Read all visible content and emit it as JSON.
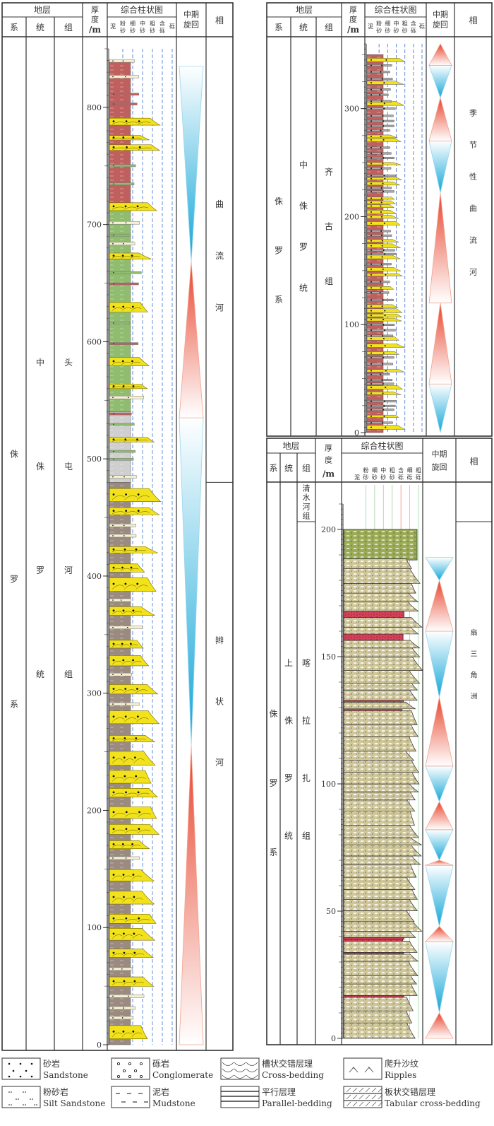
{
  "headers": {
    "strata": "地层",
    "system": "系",
    "series": "统",
    "formation": "组",
    "thickness_1": "厚",
    "thickness_2": "度",
    "thickness_unit": "/m",
    "column": "综合柱状图",
    "cycle_1": "中期",
    "cycle_2": "旋回",
    "facies": "相",
    "grain_labels_a": [
      "泥",
      "粉砂",
      "细砂",
      "中砂",
      "粗砂",
      "含砾",
      "砾"
    ],
    "grain_labels_b": [
      "泥",
      "粉砂",
      "细砂",
      "中砂",
      "粗砂",
      "含砾",
      "细砾",
      "粗砾"
    ]
  },
  "panels": [
    {
      "id": "left",
      "system": "侏罗系",
      "series": "中侏罗统",
      "formation": "头屯河组",
      "axis": {
        "min": 0,
        "max": 850,
        "ticks": [
          0,
          100,
          200,
          300,
          400,
          500,
          600,
          700,
          800
        ]
      },
      "facies": [
        {
          "name": "曲流河",
          "from": 480,
          "to": 850
        },
        {
          "name": "辫状河",
          "from": 0,
          "to": 480
        }
      ],
      "cycles": [
        {
          "type": "rise",
          "from": 0,
          "to": 255
        },
        {
          "type": "fall",
          "from": 255,
          "to": 535
        },
        {
          "type": "rise",
          "from": 535,
          "to": 668
        },
        {
          "type": "fall",
          "from": 668,
          "to": 835
        }
      ],
      "background": [
        {
          "from": 715,
          "to": 840,
          "lith": "red-mudstone"
        },
        {
          "from": 540,
          "to": 715,
          "lith": "green-mudstone"
        },
        {
          "from": 480,
          "to": 540,
          "lith": "gray-mudstone"
        },
        {
          "from": 0,
          "to": 480,
          "lith": "brown-mudstone"
        }
      ]
    },
    {
      "id": "right-top",
      "system": "侏罗系",
      "series": "中侏罗统",
      "formation": "齐古组",
      "axis": {
        "min": 0,
        "max": 360,
        "ticks": [
          0,
          100,
          200,
          300
        ]
      },
      "facies": [
        {
          "name": "季节性曲流河",
          "from": 0,
          "to": 360
        }
      ],
      "cycles": [
        {
          "type": "fall",
          "from": 45,
          "to": 0
        },
        {
          "type": "rise",
          "from": 45,
          "to": 120
        },
        {
          "type": "rise",
          "from": 120,
          "to": 222
        },
        {
          "type": "fall",
          "from": 222,
          "to": 270
        },
        {
          "type": "rise",
          "from": 270,
          "to": 310
        },
        {
          "type": "fall",
          "from": 310,
          "to": 340
        },
        {
          "type": "rise",
          "from": 340,
          "to": 360
        }
      ],
      "background": [
        {
          "from": 0,
          "to": 350,
          "lith": "red-mudstone"
        }
      ]
    },
    {
      "id": "right-bottom",
      "system": "侏罗系",
      "series": "上侏罗统",
      "formation_top": "清水河组",
      "formation": "喀拉扎组",
      "axis": {
        "min": 0,
        "max": 210,
        "ticks": [
          0,
          50,
          100,
          150,
          200
        ]
      },
      "facies": [
        {
          "name": "扇三角洲",
          "from": 0,
          "to": 190
        }
      ],
      "cycles": [
        {
          "type": "rise",
          "from": 0,
          "to": 10
        },
        {
          "type": "fall",
          "from": 10,
          "to": 38
        },
        {
          "type": "rise",
          "from": 38,
          "to": 44
        },
        {
          "type": "fall",
          "from": 44,
          "to": 68
        },
        {
          "type": "rise",
          "from": 68,
          "to": 70
        },
        {
          "type": "fall",
          "from": 70,
          "to": 82
        },
        {
          "type": "rise",
          "from": 82,
          "to": 93
        },
        {
          "type": "fall",
          "from": 93,
          "to": 107
        },
        {
          "type": "rise",
          "from": 107,
          "to": 134
        },
        {
          "type": "fall",
          "from": 134,
          "to": 160
        },
        {
          "type": "rise",
          "from": 160,
          "to": 180
        },
        {
          "type": "fall",
          "from": 180,
          "to": 189
        }
      ]
    }
  ],
  "legend": [
    {
      "cn": "砂岩",
      "en": "Sandstone",
      "pattern": "sandstone"
    },
    {
      "cn": "砾岩",
      "en": "Conglomerate",
      "pattern": "conglomerate"
    },
    {
      "cn": "槽状交错层理",
      "en": "Cross-bedding",
      "pattern": "cross-bedding"
    },
    {
      "cn": "爬升沙纹",
      "en": "Ripples",
      "pattern": "ripples"
    },
    {
      "cn": "粉砂岩",
      "en": "Silt Sandstone",
      "pattern": "siltstone"
    },
    {
      "cn": "泥岩",
      "en": "Mudstone",
      "pattern": "mudstone"
    },
    {
      "cn": "平行层理",
      "en": "Parallel-bedding",
      "pattern": "parallel"
    },
    {
      "cn": "板状交错层理",
      "en": "Tabular cross-bedding",
      "pattern": "tabular"
    }
  ],
  "colors": {
    "red_mud": "#c0605e",
    "green_mud": "#8fbc6e",
    "gray_mud": "#cfcfcf",
    "brown_mud": "#9a8a80",
    "sand_yellow": "#f2e21c",
    "silt_cream": "#f5f0d0",
    "fan_sand": "#d8cc8a",
    "fan_red": "#d6405a",
    "fan_green": "#9aaa55",
    "rise_red": "#e8452e",
    "fall_blue": "#12a6d8",
    "grain_line": "#3a6fd0"
  }
}
